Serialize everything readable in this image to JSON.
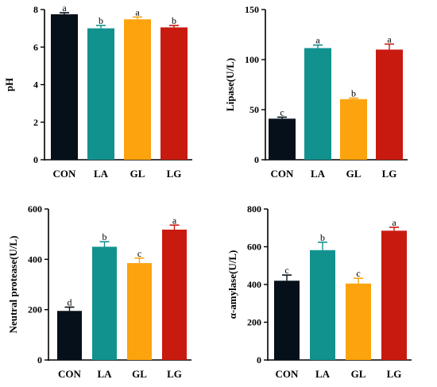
{
  "colors": {
    "CON": "#05101a",
    "LA": "#12928f",
    "GL": "#fca30d",
    "LG": "#c91a10"
  },
  "chart_data": [
    {
      "type": "bar",
      "categories": [
        "CON",
        "LA",
        "GL",
        "LG"
      ],
      "values": [
        7.75,
        7.0,
        7.48,
        7.05
      ],
      "errors": [
        0.08,
        0.15,
        0.12,
        0.1
      ],
      "significance": [
        "a",
        "b",
        "a",
        "b"
      ],
      "ylabel": "pH",
      "ylim": [
        0,
        8
      ],
      "yticks": [
        "0",
        "2",
        "4",
        "6",
        "8"
      ]
    },
    {
      "type": "bar",
      "categories": [
        "CON",
        "LA",
        "GL",
        "LG"
      ],
      "values": [
        41,
        111.5,
        60.5,
        110
      ],
      "errors": [
        1.5,
        3,
        1,
        5.5
      ],
      "significance": [
        "c",
        "a",
        "b",
        "a"
      ],
      "ylabel": "Lipase(U/L)",
      "ylim": [
        0,
        150
      ],
      "yticks": [
        "0",
        "50",
        "100",
        "150"
      ]
    },
    {
      "type": "bar",
      "categories": [
        "CON",
        "LA",
        "GL",
        "LG"
      ],
      "values": [
        195,
        450,
        385,
        518
      ],
      "errors": [
        15,
        20,
        20,
        18
      ],
      "significance": [
        "d",
        "b",
        "c",
        "a"
      ],
      "ylabel": "Neutral protease(U/L)",
      "ylim": [
        0,
        600
      ],
      "yticks": [
        "0",
        "200",
        "400",
        "600"
      ]
    },
    {
      "type": "bar",
      "categories": [
        "CON",
        "LA",
        "GL",
        "LG"
      ],
      "values": [
        420,
        582,
        405,
        685
      ],
      "errors": [
        30,
        42,
        28,
        18
      ],
      "significance": [
        "c",
        "b",
        "c",
        "a"
      ],
      "ylabel": "α-amylase(U/L)",
      "ylim": [
        0,
        800
      ],
      "yticks": [
        "0",
        "200",
        "400",
        "600",
        "800"
      ]
    }
  ]
}
